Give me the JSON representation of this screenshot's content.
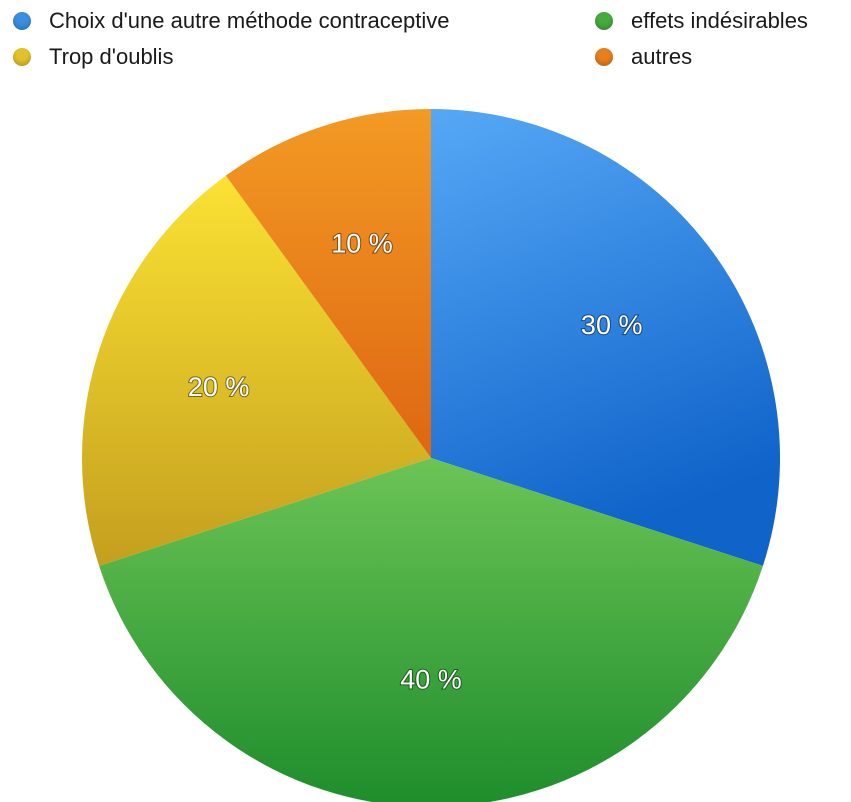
{
  "chart_data": {
    "type": "pie",
    "legend_position": "top",
    "slices": [
      {
        "label": "Choix d'une autre méthode contraceptive",
        "value": 30,
        "value_label": "30 %",
        "color": "#3a8fe0"
      },
      {
        "label": "effets indésirables",
        "value": 40,
        "value_label": "40 %",
        "color": "#46aa3c"
      },
      {
        "label": "Trop d'oublis",
        "value": 20,
        "value_label": "20 %",
        "color": "#e2c22a"
      },
      {
        "label": "autres",
        "value": 10,
        "value_label": "10 %",
        "color": "#e77f1c"
      }
    ],
    "gradients": {
      "blue": [
        "#56a8f6",
        "#0f63c9"
      ],
      "green": [
        "#6cc456",
        "#1d8d2b"
      ],
      "yellow": [
        "#fbe233",
        "#c49f1e"
      ],
      "orange": [
        "#f39a24",
        "#de6612"
      ]
    }
  }
}
